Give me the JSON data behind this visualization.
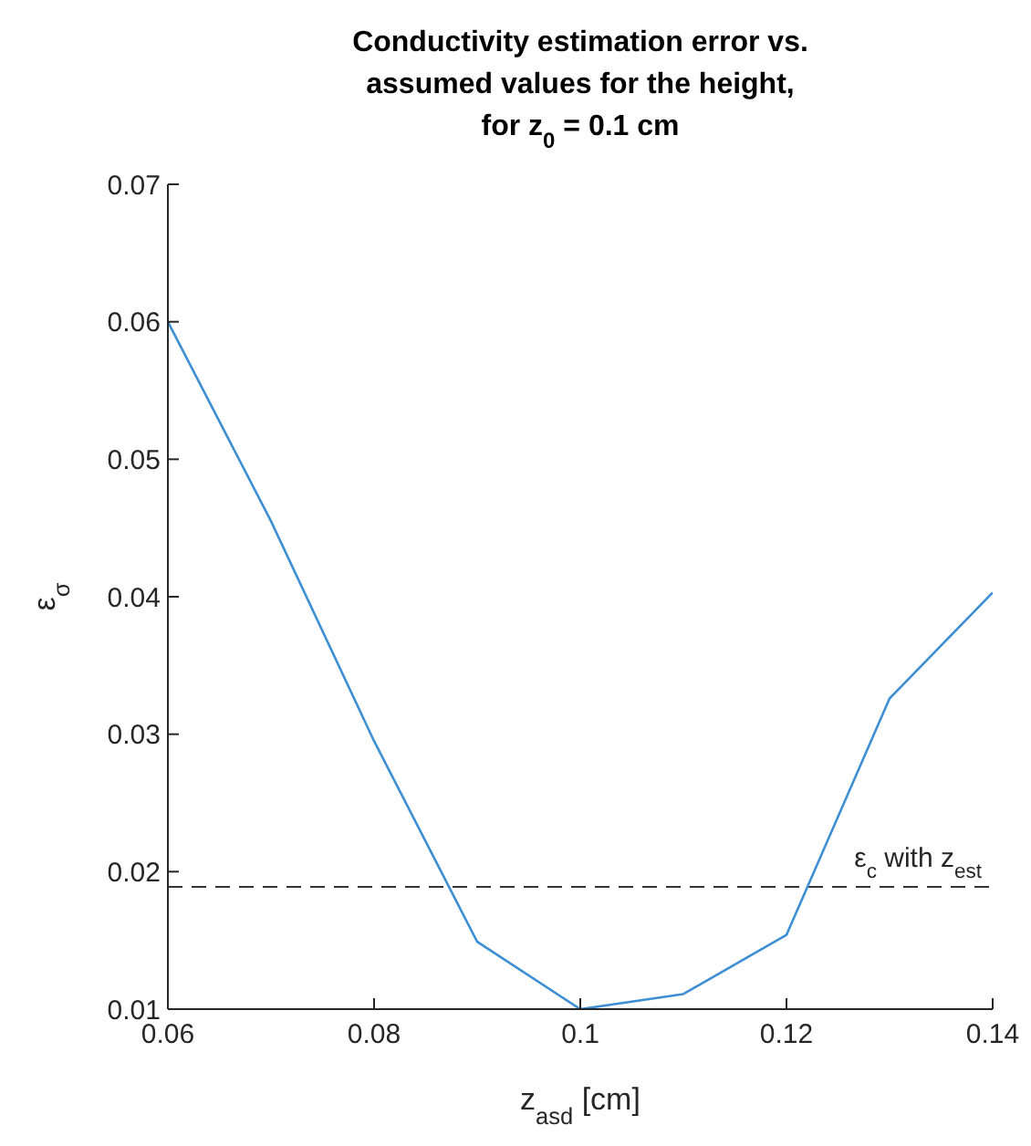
{
  "chart_data": {
    "type": "line",
    "title": "Conductivity estimation error vs.\nassumed values for the height,\nfor z$_{0}$ = 0.1 cm",
    "xlabel": "z$_{asd}$ [cm]",
    "ylabel": "ε$_{σ}$",
    "x": [
      0.06,
      0.07,
      0.08,
      0.09,
      0.1,
      0.11,
      0.12,
      0.13,
      0.14
    ],
    "series": [
      {
        "color": "#3d8fd4",
        "values": [
          0.06,
          0.0455,
          0.0295,
          0.0149,
          0.01,
          0.0111,
          0.0154,
          0.0326,
          0.0403
        ]
      }
    ],
    "xlim": [
      0.06,
      0.14
    ],
    "xticks": [
      0.06,
      0.08,
      0.1,
      0.12,
      0.14
    ],
    "ylim": [
      0.01,
      0.07
    ],
    "yticks": [
      0.01,
      0.02,
      0.03,
      0.04,
      0.05,
      0.06,
      0.07
    ],
    "ref_lines": [
      {
        "axis": "y",
        "value": 0.0189,
        "label": "ε$_{c}$ with z$_{est}$",
        "color": "#333333",
        "line_style": "dashed"
      }
    ]
  }
}
